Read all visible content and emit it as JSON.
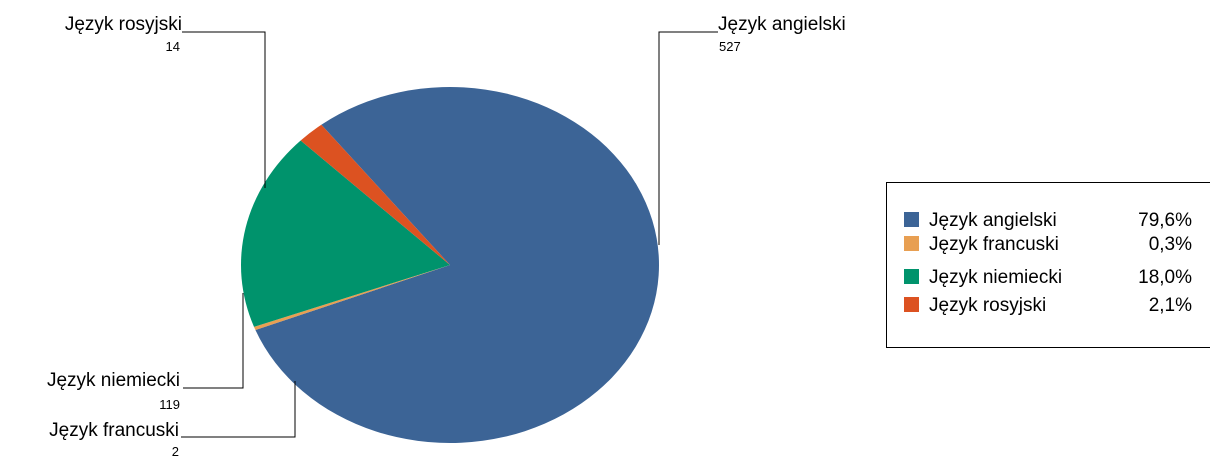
{
  "chart_data": {
    "type": "pie",
    "slices": [
      {
        "label": "Język angielski",
        "value": 527,
        "percent": "79,6%",
        "color": "#3c6496"
      },
      {
        "label": "Język francuski",
        "value": 2,
        "percent": "0,3%",
        "color": "#e89f52"
      },
      {
        "label": "Język niemiecki",
        "value": 119,
        "percent": "18,0%",
        "color": "#00936c"
      },
      {
        "label": "Język rosyjski",
        "value": 14,
        "percent": "2,1%",
        "color": "#dc5221"
      }
    ],
    "callout_values": [
      "527",
      "2",
      "119",
      "14"
    ],
    "legend_position": "right"
  }
}
